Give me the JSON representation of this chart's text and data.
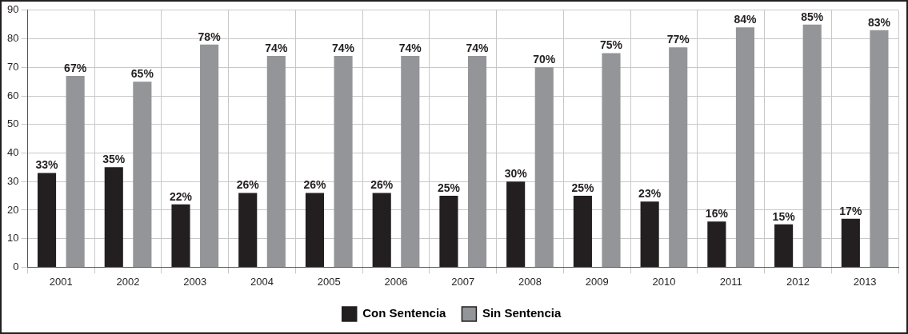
{
  "chart_data": {
    "type": "bar",
    "categories": [
      "2001",
      "2002",
      "2003",
      "2004",
      "2005",
      "2006",
      "2007",
      "2008",
      "2009",
      "2010",
      "2011",
      "2012",
      "2013"
    ],
    "series": [
      {
        "name": "Con Sentencia",
        "color": "#231f20",
        "values": [
          33,
          35,
          22,
          26,
          26,
          26,
          25,
          30,
          25,
          23,
          16,
          15,
          17
        ],
        "value_labels": [
          "33%",
          "35%",
          "22%",
          "26%",
          "26%",
          "26%",
          "25%",
          "30%",
          "25%",
          "23%",
          "16%",
          "15%",
          "17%"
        ]
      },
      {
        "name": "Sin Sentencia",
        "color": "#939598",
        "values": [
          67,
          65,
          78,
          74,
          74,
          74,
          74,
          70,
          75,
          77,
          84,
          85,
          83
        ],
        "value_labels": [
          "67%",
          "65%",
          "78%",
          "74%",
          "74%",
          "74%",
          "74%",
          "70%",
          "75%",
          "77%",
          "84%",
          "85%",
          "83%"
        ]
      }
    ],
    "ylim": [
      0,
      90
    ],
    "yticks": [
      0,
      10,
      20,
      30,
      40,
      50,
      60,
      70,
      80,
      90
    ],
    "grid": true,
    "legend": "bottom"
  }
}
